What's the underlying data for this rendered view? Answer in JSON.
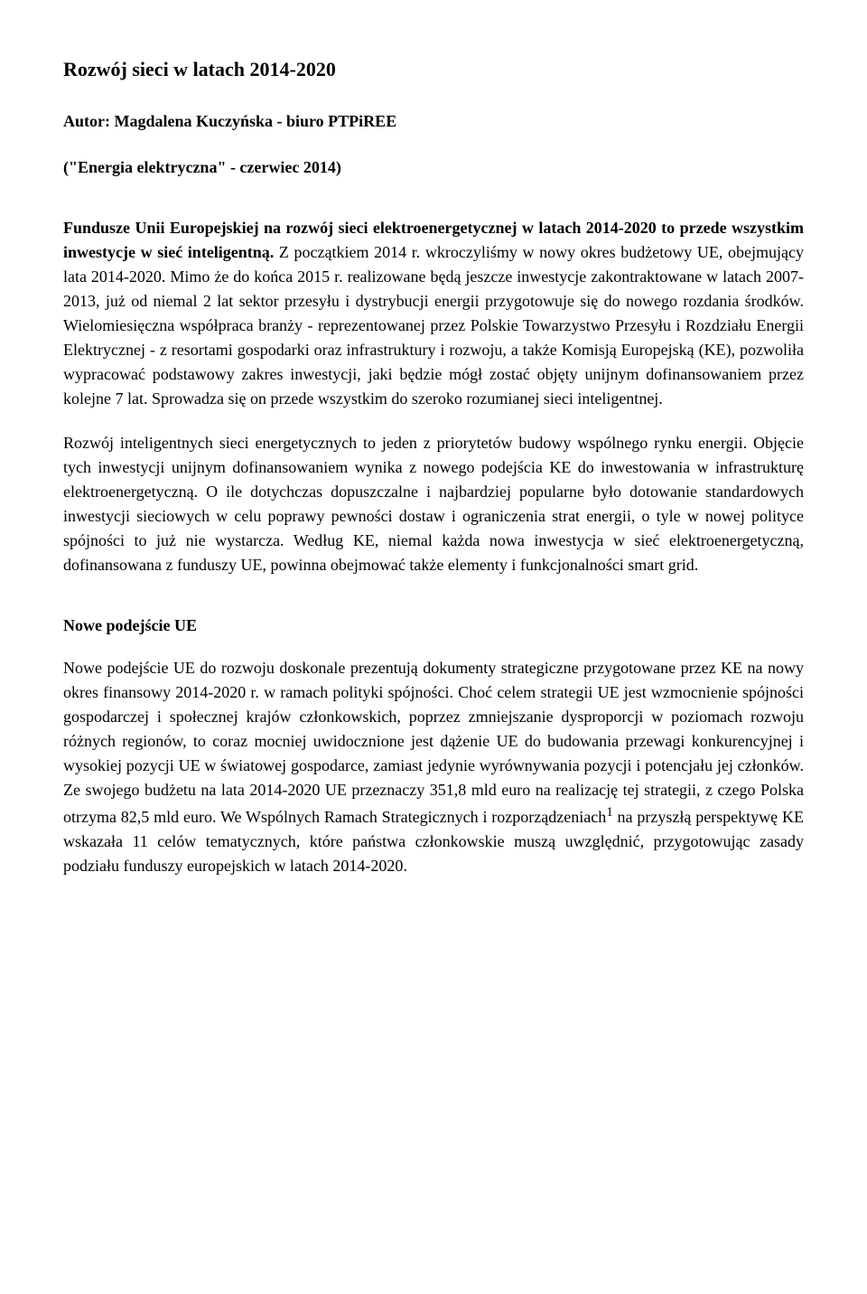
{
  "title": "Rozwój sieci w latach 2014-2020",
  "author": "Autor: Magdalena Kuczyńska - biuro PTPiREE",
  "source": "(\"Energia elektryczna\" - czerwiec 2014)",
  "lead_bold": "Fundusze Unii Europejskiej na rozwój sieci elektroenergetycznej w latach 2014-2020 to przede wszystkim inwestycje w sieć inteligentną.",
  "para1_rest": " Z początkiem 2014 r. wkroczyliśmy w nowy okres budżetowy UE, obejmujący lata 2014-2020. Mimo że do końca 2015 r. realizowane będą jeszcze inwestycje zakontraktowane w latach 2007-2013, już od niemal 2 lat sektor przesyłu i dystrybucji energii przygotowuje się do nowego rozdania środków. Wielomiesięczna współpraca branży - reprezentowanej przez Polskie Towarzystwo Przesyłu i Rozdziału Energii Elektrycznej - z resortami gospodarki oraz infrastruktury i rozwoju, a także Komisją Europejską (KE), pozwoliła wypracować podstawowy zakres inwestycji, jaki będzie mógł zostać objęty unijnym dofinansowaniem przez kolejne 7 lat. Sprowadza się on przede wszystkim do szeroko rozumianej sieci inteligentnej.",
  "para2": "Rozwój inteligentnych sieci energetycznych to jeden z priorytetów budowy wspólnego rynku energii. Objęcie tych inwestycji unijnym dofinansowaniem wynika z nowego podejścia KE do inwestowania w infrastrukturę elektroenergetyczną. O ile dotychczas dopuszczalne i najbardziej popularne było dotowanie standardowych inwestycji sieciowych w celu poprawy pewności dostaw i ograniczenia strat energii, o tyle w nowej polityce spójności to już nie wystarcza. Według KE, niemal każda nowa inwestycja w sieć elektroenergetyczną, dofinansowana z funduszy UE, powinna obejmować także elementy i funkcjonalności smart grid.",
  "section_heading": "Nowe podejście UE",
  "para3_a": "Nowe podejście UE do rozwoju doskonale prezentują dokumenty strategiczne przygotowane przez KE na nowy okres finansowy 2014-2020 r. w ramach polityki spójności. Choć celem strategii UE jest wzmocnienie spójności gospodarczej i społecznej krajów członkowskich, poprzez zmniejszanie dysproporcji w poziomach rozwoju różnych regionów, to coraz mocniej uwidocznione jest dążenie UE do budowania przewagi konkurencyjnej i wysokiej pozycji UE w światowej gospodarce, zamiast jedynie wyrównywania pozycji i potencjału jej członków. Ze swojego budżetu na lata 2014-2020 UE przeznaczy 351,8 mld euro na realizację tej strategii, z czego Polska otrzyma 82,5 mld euro. We Wspólnych Ramach Strategicznych i rozporządzeniach",
  "footnote_marker": "1",
  "para3_b": " na przyszłą perspektywę KE wskazała 11 celów tematycznych, które państwa członkowskie muszą uwzględnić, przygotowując zasady podziału funduszy europejskich w latach 2014-2020."
}
